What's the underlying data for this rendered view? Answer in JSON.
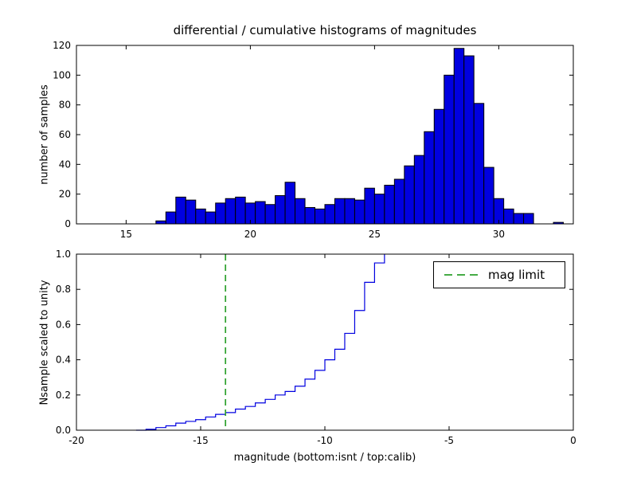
{
  "figure": {
    "title": "differential / cumulative histograms of magnitudes"
  },
  "chart_data": [
    {
      "id": "differential-histogram",
      "type": "bar",
      "title": "differential / cumulative histograms of magnitudes",
      "ylabel": "number of samples",
      "xlim": [
        13,
        33
      ],
      "ylim": [
        0,
        120
      ],
      "xtick_values": [
        15,
        20,
        25,
        30
      ],
      "xtick_labels": [
        "15",
        "20",
        "25",
        "30"
      ],
      "ytick_values": [
        0,
        20,
        40,
        60,
        80,
        100,
        120
      ],
      "ytick_labels": [
        "0",
        "20",
        "40",
        "60",
        "80",
        "100",
        "120"
      ],
      "grid": false,
      "bin_start": 16.2,
      "bin_width": 0.4,
      "counts": [
        2,
        8,
        18,
        16,
        10,
        8,
        14,
        17,
        18,
        14,
        15,
        13,
        19,
        28,
        17,
        11,
        10,
        13,
        17,
        17,
        16,
        24,
        20,
        26,
        30,
        39,
        46,
        62,
        77,
        100,
        118,
        113,
        81,
        38,
        17,
        10,
        7,
        7,
        0,
        0,
        1
      ],
      "bar_fill": "#0000e0",
      "bar_edge": "#000000"
    },
    {
      "id": "cumulative-histogram",
      "type": "line",
      "ylabel": "Nsample scaled to unity",
      "xlabel": "magnitude (bottom:isnt / top:calib)",
      "xlim": [
        -20,
        0
      ],
      "ylim": [
        0.0,
        1.0
      ],
      "xtick_values": [
        -20,
        -15,
        -10,
        -5,
        0
      ],
      "xtick_labels": [
        "-20",
        "-15",
        "-10",
        "-5",
        "0"
      ],
      "ytick_values": [
        0.0,
        0.2,
        0.4,
        0.6,
        0.8,
        1.0
      ],
      "ytick_labels": [
        "0.0",
        "0.2",
        "0.4",
        "0.6",
        "0.8",
        "1.0"
      ],
      "grid": false,
      "line_color": "#0000e0",
      "step": true,
      "curve": [
        [
          -17.6,
          0.0
        ],
        [
          -17.2,
          0.005
        ],
        [
          -16.8,
          0.015
        ],
        [
          -16.4,
          0.025
        ],
        [
          -16.0,
          0.04
        ],
        [
          -15.6,
          0.05
        ],
        [
          -15.2,
          0.06
        ],
        [
          -14.8,
          0.075
        ],
        [
          -14.4,
          0.09
        ],
        [
          -14.0,
          0.1
        ],
        [
          -13.6,
          0.12
        ],
        [
          -13.2,
          0.135
        ],
        [
          -12.8,
          0.155
        ],
        [
          -12.4,
          0.175
        ],
        [
          -12.0,
          0.2
        ],
        [
          -11.6,
          0.22
        ],
        [
          -11.2,
          0.25
        ],
        [
          -10.8,
          0.29
        ],
        [
          -10.4,
          0.34
        ],
        [
          -10.0,
          0.4
        ],
        [
          -9.6,
          0.46
        ],
        [
          -9.2,
          0.55
        ],
        [
          -8.8,
          0.68
        ],
        [
          -8.4,
          0.84
        ],
        [
          -8.0,
          0.95
        ],
        [
          -7.6,
          1.0
        ]
      ],
      "mag_limit_x": -14,
      "mag_limit_color": "#2ca02c",
      "legend_label": "mag limit",
      "legend_loc": "upper right"
    }
  ]
}
